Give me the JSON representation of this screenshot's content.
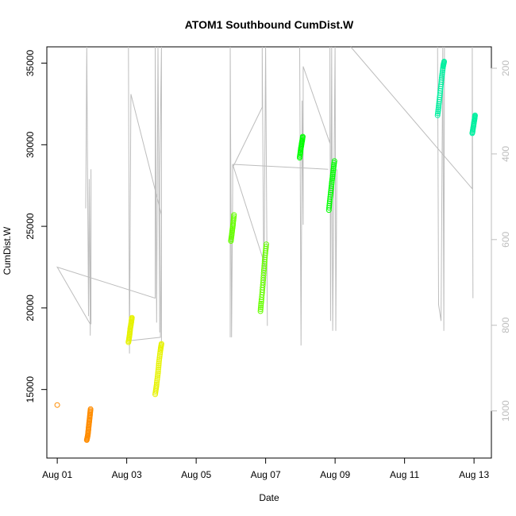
{
  "chart_data": {
    "type": "scatter",
    "title": "ATOM1 Southbound CumDist.W",
    "xlabel": "Date",
    "ylabel": "CumDist.W",
    "x_ticks": [
      "Aug 01",
      "Aug 03",
      "Aug 05",
      "Aug 07",
      "Aug 09",
      "Aug 11",
      "Aug 13"
    ],
    "x_tick_days": [
      1,
      3,
      5,
      7,
      9,
      11,
      13
    ],
    "xlim_days": [
      0.7,
      13.5
    ],
    "ylim": [
      10800,
      36000
    ],
    "y_ticks": [
      15000,
      20000,
      25000,
      30000,
      35000
    ],
    "y2_ticks": [
      200,
      400,
      600,
      800,
      1000
    ],
    "y2lim": [
      1110,
      150
    ],
    "grid": false,
    "colors": {
      "line": "#bdbdbd",
      "axis": "#000000",
      "right_axis": "#bdbdbd",
      "orange": "#ff8c00",
      "yellow": "#e6f200",
      "green": "#00ff00",
      "lime": "#66ff00",
      "teal": "#00f0a0"
    },
    "series": [
      {
        "color": "orange",
        "points": [
          [
            1.0,
            14050
          ]
        ]
      },
      {
        "color": "orange",
        "points": [
          [
            1.85,
            11900
          ],
          [
            1.88,
            12200
          ],
          [
            1.9,
            12600
          ],
          [
            1.92,
            13000
          ],
          [
            1.94,
            13400
          ],
          [
            1.96,
            13800
          ]
        ]
      },
      {
        "color": "yellow",
        "points": [
          [
            3.05,
            17900
          ],
          [
            3.08,
            18300
          ],
          [
            3.1,
            18700
          ],
          [
            3.13,
            19100
          ],
          [
            3.15,
            19400
          ]
        ]
      },
      {
        "color": "yellow",
        "points": [
          [
            3.82,
            14700
          ],
          [
            3.86,
            15300
          ],
          [
            3.9,
            16000
          ],
          [
            3.93,
            16700
          ],
          [
            3.97,
            17400
          ],
          [
            4.0,
            17800
          ]
        ]
      },
      {
        "color": "lime",
        "points": [
          [
            6.0,
            24100
          ],
          [
            6.03,
            24600
          ],
          [
            6.06,
            25100
          ],
          [
            6.09,
            25700
          ]
        ]
      },
      {
        "color": "lime",
        "points": [
          [
            6.85,
            19800
          ],
          [
            6.88,
            20500
          ],
          [
            6.92,
            21400
          ],
          [
            6.95,
            22300
          ],
          [
            6.98,
            23100
          ],
          [
            7.02,
            23900
          ]
        ]
      },
      {
        "color": "green",
        "points": [
          [
            7.98,
            29200
          ],
          [
            8.01,
            29700
          ],
          [
            8.04,
            30100
          ],
          [
            8.07,
            30500
          ]
        ]
      },
      {
        "color": "green",
        "points": [
          [
            8.82,
            26000
          ],
          [
            8.86,
            26800
          ],
          [
            8.9,
            27600
          ],
          [
            8.94,
            28300
          ],
          [
            8.98,
            29000
          ]
        ]
      },
      {
        "color": "teal",
        "points": [
          [
            11.95,
            31800
          ],
          [
            11.99,
            32500
          ],
          [
            12.03,
            33300
          ],
          [
            12.07,
            34100
          ],
          [
            12.11,
            34800
          ],
          [
            12.14,
            35100
          ]
        ]
      },
      {
        "color": "teal",
        "points": [
          [
            12.95,
            30700
          ],
          [
            12.98,
            31100
          ],
          [
            13.01,
            31500
          ],
          [
            13.03,
            31800
          ]
        ]
      }
    ],
    "traces": [
      [
        [
          1.0,
          22500
        ],
        [
          1.95,
          19000
        ],
        [
          1.0,
          22500
        ],
        [
          3.82,
          20600
        ],
        [
          3.82,
          36000
        ],
        [
          3.86,
          19100
        ],
        [
          3.9,
          36000
        ],
        [
          3.95,
          18500
        ],
        [
          3.95,
          28300
        ],
        [
          4.0,
          36000
        ],
        [
          4.0,
          17800
        ]
      ],
      [
        [
          1.82,
          26100
        ],
        [
          1.85,
          36000
        ],
        [
          1.9,
          19500
        ],
        [
          1.92,
          27900
        ],
        [
          1.95,
          18300
        ],
        [
          1.97,
          28500
        ],
        [
          1.97,
          19000
        ]
      ],
      [
        [
          3.05,
          36000
        ],
        [
          3.08,
          17200
        ],
        [
          3.12,
          33100
        ],
        [
          4.0,
          25700
        ],
        [
          3.97,
          18200
        ],
        [
          3.12,
          18000
        ]
      ],
      [
        [
          5.98,
          18200
        ],
        [
          5.98,
          36000
        ],
        [
          6.02,
          18200
        ],
        [
          6.05,
          27300
        ],
        [
          6.05,
          28800
        ],
        [
          7.0,
          22500
        ]
      ],
      [
        [
          6.05,
          28800
        ],
        [
          8.8,
          28500
        ]
      ],
      [
        [
          6.05,
          28600
        ],
        [
          6.9,
          32300
        ],
        [
          6.9,
          36000
        ],
        [
          6.95,
          20800
        ],
        [
          7.0,
          36000
        ],
        [
          7.05,
          18900
        ],
        [
          7.0,
          36000
        ]
      ],
      [
        [
          7.98,
          36000
        ],
        [
          8.02,
          17700
        ],
        [
          8.05,
          32700
        ],
        [
          8.08,
          25100
        ],
        [
          8.08,
          34800
        ],
        [
          8.85,
          30100
        ],
        [
          8.85,
          36000
        ],
        [
          8.87,
          19200
        ],
        [
          8.9,
          36000
        ],
        [
          8.93,
          18600
        ],
        [
          9.0,
          36000
        ],
        [
          9.02,
          18600
        ],
        [
          9.05,
          28500
        ]
      ],
      [
        [
          9.45,
          36000
        ],
        [
          12.95,
          27300
        ],
        [
          12.95,
          36000
        ],
        [
          12.97,
          20600
        ]
      ],
      [
        [
          11.95,
          36000
        ],
        [
          11.98,
          20200
        ],
        [
          12.05,
          19200
        ],
        [
          12.1,
          36000
        ],
        [
          12.13,
          18600
        ],
        [
          12.15,
          36000
        ]
      ]
    ]
  }
}
